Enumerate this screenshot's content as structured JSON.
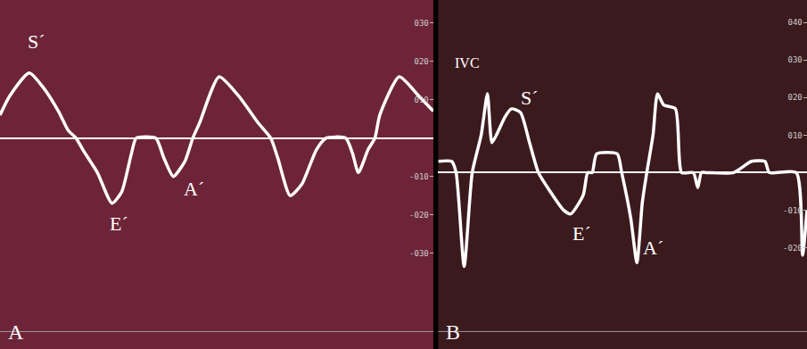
{
  "chart_data": [
    {
      "type": "line",
      "title": "A",
      "color": "#ffffff",
      "grid": false,
      "tick_labels": "y",
      "x": [
        0,
        10,
        30,
        45,
        60,
        70,
        78,
        85,
        100,
        115,
        125,
        135,
        140,
        160,
        168,
        178,
        190,
        198,
        205,
        225,
        245,
        265,
        278,
        285,
        298,
        310,
        325,
        335,
        355,
        362,
        368,
        378,
        385,
        390,
        410,
        430,
        445
      ],
      "values": [
        6,
        11,
        17,
        13,
        7,
        2,
        0,
        -3,
        -9,
        -17,
        -14,
        -4,
        0,
        0,
        -5,
        -10,
        -6,
        0,
        4,
        16,
        11,
        4,
        0,
        -5,
        -15,
        -12,
        -3,
        0,
        0,
        -4,
        -9,
        -3,
        0,
        6,
        16,
        11,
        7
      ],
      "xlim": [
        0,
        445
      ],
      "ylim": [
        -55,
        36
      ],
      "yticks": [
        {
          "value": 30,
          "label": "030"
        },
        {
          "value": 20,
          "label": "020"
        },
        {
          "value": 10,
          "label": "010"
        },
        {
          "value": -10,
          "label": "-010"
        },
        {
          "value": -20,
          "label": "-020"
        },
        {
          "value": -30,
          "label": "-030"
        }
      ],
      "annotations": [
        "S´",
        "E´",
        "A´"
      ]
    },
    {
      "type": "line",
      "title": "B",
      "color": "#ffffff",
      "grid": false,
      "tick_labels": "y",
      "x": [
        0,
        15,
        20,
        29,
        38,
        48,
        55,
        60,
        65,
        75,
        82,
        92,
        102,
        112,
        125,
        140,
        148,
        162,
        167,
        172,
        177,
        200,
        205,
        215,
        222,
        228,
        233,
        240,
        245,
        252,
        265,
        272,
        285,
        290,
        294,
        300,
        330,
        350,
        365,
        370,
        400,
        407,
        412
      ],
      "values": [
        3,
        3,
        0,
        -25,
        0,
        10,
        21,
        8,
        10,
        15,
        17,
        16,
        8,
        0,
        -5,
        -10,
        -11,
        -6,
        0,
        0,
        5,
        5,
        0,
        -12,
        -24,
        -8,
        0,
        10,
        21,
        18,
        17,
        0,
        0,
        -4,
        0,
        0,
        0,
        3,
        3,
        0,
        0,
        -22,
        -10
      ],
      "xlim": [
        0,
        412
      ],
      "ylim": [
        -47,
        46
      ],
      "yticks": [
        {
          "value": 40,
          "label": "040"
        },
        {
          "value": 30,
          "label": "030"
        },
        {
          "value": 20,
          "label": "020"
        },
        {
          "value": 10,
          "label": "010"
        },
        {
          "value": -10,
          "label": "-010"
        },
        {
          "value": -20,
          "label": "-020"
        }
      ],
      "annotations": [
        "IVC",
        "S´",
        "E´",
        "A´"
      ]
    }
  ]
}
